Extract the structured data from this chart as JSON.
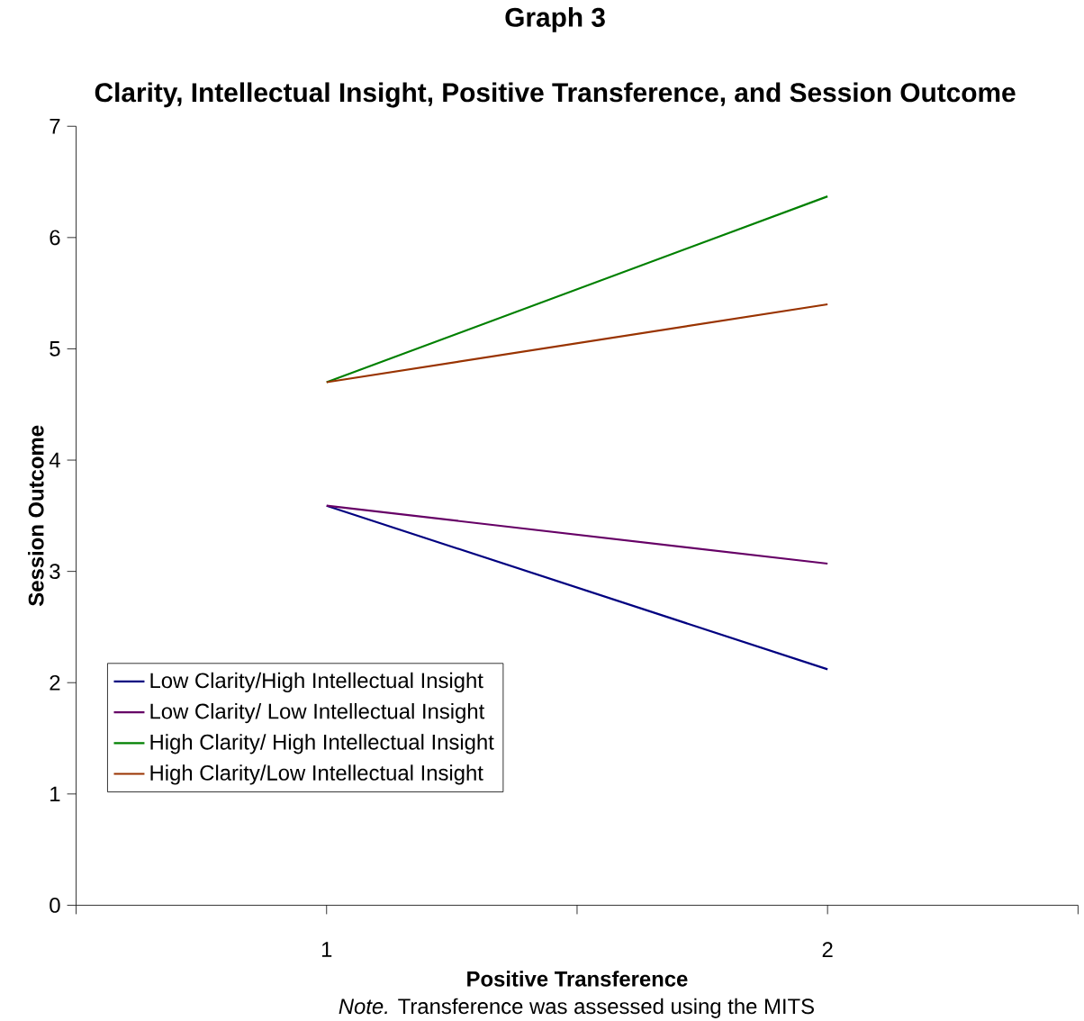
{
  "chart_data": {
    "type": "line",
    "title": "Graph 3",
    "subtitle": "Clarity, Intellectual Insight, Positive Transference, and Session Outcome",
    "xlabel": "Positive Transference",
    "ylabel": "Session Outcome",
    "x": [
      1,
      2
    ],
    "series": [
      {
        "name": "Low Clarity/High Intellectual Insight",
        "color": "#000080",
        "values": [
          3.59,
          2.12
        ]
      },
      {
        "name": "Low Clarity/ Low Intellectual Insight",
        "color": "#660066",
        "values": [
          3.59,
          3.07
        ]
      },
      {
        "name": "High Clarity/ High Intellectual Insight",
        "color": "#008000",
        "values": [
          4.7,
          6.37
        ]
      },
      {
        "name": "High Clarity/Low Intellectual Insight",
        "color": "#993300",
        "values": [
          4.7,
          5.4
        ]
      }
    ],
    "xlim": [
      0.5,
      2.5
    ],
    "xticks": [
      {
        "value": 0.5,
        "label": null
      },
      1,
      {
        "value": 1.5,
        "label": null
      },
      2,
      {
        "value": 2.5,
        "label": null
      }
    ],
    "ylim": [
      0,
      7
    ],
    "yticks": [
      0,
      1,
      2,
      3,
      4,
      5,
      6,
      7
    ],
    "grid": false,
    "legend": "bottom left",
    "marker": "none",
    "line_style": "solid",
    "annotations": [
      "*Note.* Transference was assessed using the MITS"
    ]
  }
}
